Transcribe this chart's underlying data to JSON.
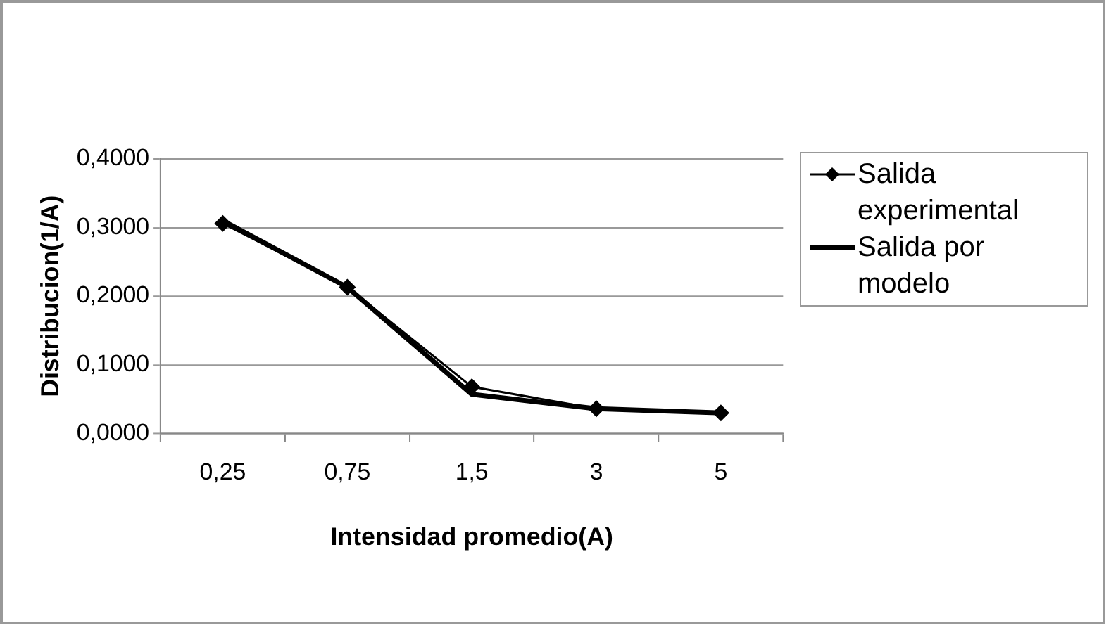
{
  "chart_data": {
    "type": "line",
    "xlabel": "Intensidad promedio(A)",
    "ylabel": "Distribucion(1/A)",
    "categories": [
      "0,25",
      "0,75",
      "1,5",
      "3",
      "5"
    ],
    "series": [
      {
        "name": "Salida experimental",
        "color": "#000000",
        "marker": "diamond",
        "values": [
          0.306,
          0.213,
          0.068,
          0.036,
          0.03
        ]
      },
      {
        "name": "Salida por modelo",
        "color": "#000000",
        "marker": "none",
        "values": [
          0.31,
          0.213,
          0.057,
          0.036,
          0.03
        ]
      }
    ],
    "ylim": [
      0,
      0.4
    ],
    "yticks": [
      {
        "value": 0,
        "label": "0,0000"
      },
      {
        "value": 0.1,
        "label": "0,1000"
      },
      {
        "value": 0.2,
        "label": "0,2000"
      },
      {
        "value": 0.3,
        "label": "0,3000"
      },
      {
        "value": 0.4,
        "label": "0,4000"
      }
    ],
    "grid": "y",
    "legend": "right",
    "line_style": "solid"
  }
}
